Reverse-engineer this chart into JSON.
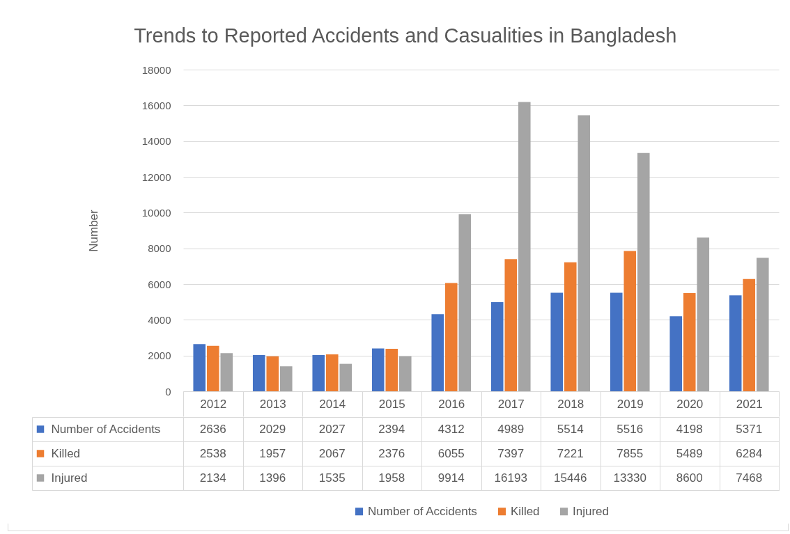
{
  "chart_data": {
    "type": "bar",
    "title": "Trends to Reported Accidents and Casualities in Bangladesh",
    "ylabel": "Number",
    "categories": [
      "2012",
      "2013",
      "2014",
      "2015",
      "2016",
      "2017",
      "2018",
      "2019",
      "2020",
      "2021"
    ],
    "series": [
      {
        "name": "Number of Accidents",
        "color": "#4472c4",
        "values": [
          2636,
          2029,
          2027,
          2394,
          4312,
          4989,
          5514,
          5516,
          4198,
          5371
        ]
      },
      {
        "name": "Killed",
        "color": "#ed7d31",
        "values": [
          2538,
          1957,
          2067,
          2376,
          6055,
          7397,
          7221,
          7855,
          5489,
          6284
        ]
      },
      {
        "name": "Injured",
        "color": "#a5a5a5",
        "values": [
          2134,
          1396,
          1535,
          1958,
          9914,
          16193,
          15446,
          13330,
          8600,
          7468
        ]
      }
    ],
    "ylim": [
      0,
      18000
    ],
    "yticks": [
      0,
      2000,
      4000,
      6000,
      8000,
      10000,
      12000,
      14000,
      16000,
      18000
    ],
    "grid": "y",
    "legend": "bottom",
    "data_labels": true
  }
}
